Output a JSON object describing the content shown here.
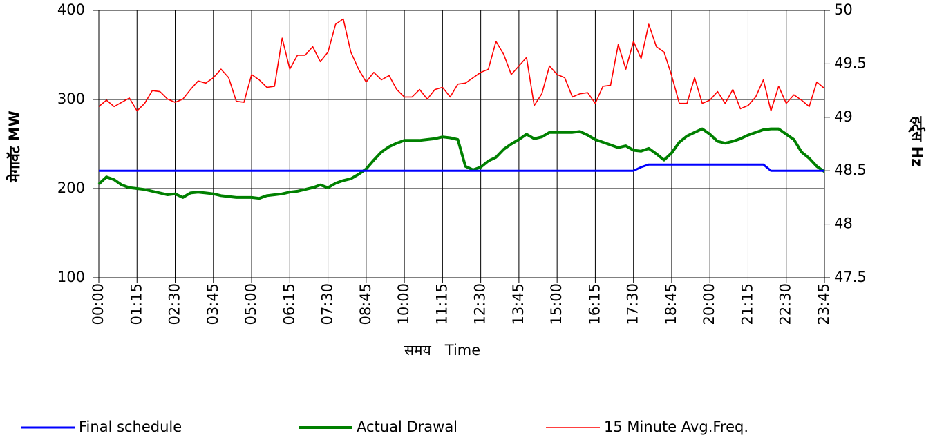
{
  "chart_data": {
    "type": "line",
    "categories": [
      "00:00",
      null,
      null,
      null,
      null,
      "01:15",
      null,
      null,
      null,
      null,
      "02:30",
      null,
      null,
      null,
      null,
      "03:45",
      null,
      null,
      null,
      null,
      "05:00",
      null,
      null,
      null,
      null,
      "06:15",
      null,
      null,
      null,
      null,
      "07:30",
      null,
      null,
      null,
      null,
      "08:45",
      null,
      null,
      null,
      null,
      "10:00",
      null,
      null,
      null,
      null,
      "11:15",
      null,
      null,
      null,
      null,
      "12:30",
      null,
      null,
      null,
      null,
      "13:45",
      null,
      null,
      null,
      null,
      "15:00",
      null,
      null,
      null,
      null,
      "16:15",
      null,
      null,
      null,
      null,
      "17:30",
      null,
      null,
      null,
      null,
      "18:45",
      null,
      null,
      null,
      null,
      "20:00",
      null,
      null,
      null,
      null,
      "21:15",
      null,
      null,
      null,
      null,
      "22:30",
      null,
      null,
      null,
      null,
      "23:45"
    ],
    "series": [
      {
        "name": "Final schedule",
        "color": "#0000ff",
        "width": 3,
        "axis": "y",
        "values": [
          220,
          220,
          220,
          220,
          220,
          220,
          220,
          220,
          220,
          220,
          220,
          220,
          220,
          220,
          220,
          220,
          220,
          220,
          220,
          220,
          220,
          220,
          220,
          220,
          220,
          220,
          220,
          220,
          220,
          220,
          220,
          220,
          220,
          220,
          220,
          220,
          220,
          220,
          220,
          220,
          220,
          220,
          220,
          220,
          220,
          220,
          220,
          220,
          220,
          220,
          220,
          220,
          220,
          220,
          220,
          220,
          220,
          220,
          220,
          220,
          220,
          220,
          220,
          220,
          220,
          220,
          220,
          220,
          220,
          220,
          220,
          224,
          227,
          227,
          227,
          227,
          227,
          227,
          227,
          227,
          227,
          227,
          227,
          227,
          227,
          227,
          227,
          227,
          220,
          220,
          220,
          220,
          220,
          220,
          220,
          220
        ]
      },
      {
        "name": "Actual Drawal",
        "color": "#008000",
        "width": 4,
        "axis": "y",
        "values": [
          205,
          213,
          210,
          204,
          201,
          200,
          199,
          197,
          195,
          193,
          194,
          190,
          195,
          196,
          195,
          194,
          192,
          191,
          190,
          190,
          190,
          189,
          192,
          193,
          194,
          196,
          197,
          199,
          201,
          204,
          201,
          206,
          209,
          211,
          216,
          222,
          232,
          241,
          247,
          251,
          254,
          254,
          254,
          255,
          256,
          258,
          257,
          255,
          225,
          221,
          224,
          231,
          235,
          244,
          250,
          255,
          261,
          256,
          258,
          263,
          263,
          263,
          263,
          264,
          260,
          255,
          252,
          249,
          246,
          248,
          243,
          242,
          245,
          239,
          232,
          240,
          252,
          259,
          263,
          267,
          261,
          253,
          251,
          253,
          256,
          260,
          263,
          266,
          267,
          267,
          261,
          255,
          241,
          234,
          225,
          219
        ]
      },
      {
        "name": "15 Minute Avg.Freq.",
        "color": "#ff0000",
        "width": 1.6,
        "axis": "y2",
        "values": [
          49.1,
          49.16,
          49.1,
          49.14,
          49.18,
          49.06,
          49.13,
          49.25,
          49.24,
          49.17,
          49.14,
          49.17,
          49.26,
          49.34,
          49.32,
          49.37,
          49.45,
          49.37,
          49.15,
          49.14,
          49.4,
          49.35,
          49.28,
          49.29,
          49.74,
          49.45,
          49.58,
          49.58,
          49.66,
          49.52,
          49.61,
          49.87,
          49.92,
          49.61,
          49.45,
          49.33,
          49.42,
          49.35,
          49.39,
          49.26,
          49.19,
          49.19,
          49.26,
          49.17,
          49.26,
          49.28,
          49.19,
          49.31,
          49.32,
          49.37,
          49.42,
          49.45,
          49.71,
          49.59,
          49.4,
          49.48,
          49.56,
          49.11,
          49.22,
          49.48,
          49.4,
          49.37,
          49.19,
          49.22,
          49.23,
          49.13,
          49.29,
          49.3,
          49.68,
          49.45,
          49.71,
          49.55,
          49.87,
          49.66,
          49.61,
          49.39,
          49.13,
          49.13,
          49.37,
          49.13,
          49.16,
          49.24,
          49.13,
          49.26,
          49.08,
          49.11,
          49.19,
          49.35,
          49.06,
          49.29,
          49.13,
          49.21,
          49.16,
          49.1,
          49.33,
          49.27
        ]
      }
    ],
    "xlabel": "समय   Time",
    "ylabel": "मेगावॅट MW",
    "y2label": "हर्ट्स Hz",
    "ylim": [
      100,
      400
    ],
    "yticks": [
      100,
      200,
      300,
      400
    ],
    "y2lim": [
      47.5,
      50
    ],
    "y2ticks": [
      47.5,
      48,
      48.5,
      49,
      49.5,
      50
    ],
    "grid": true,
    "legend": "bottom"
  }
}
